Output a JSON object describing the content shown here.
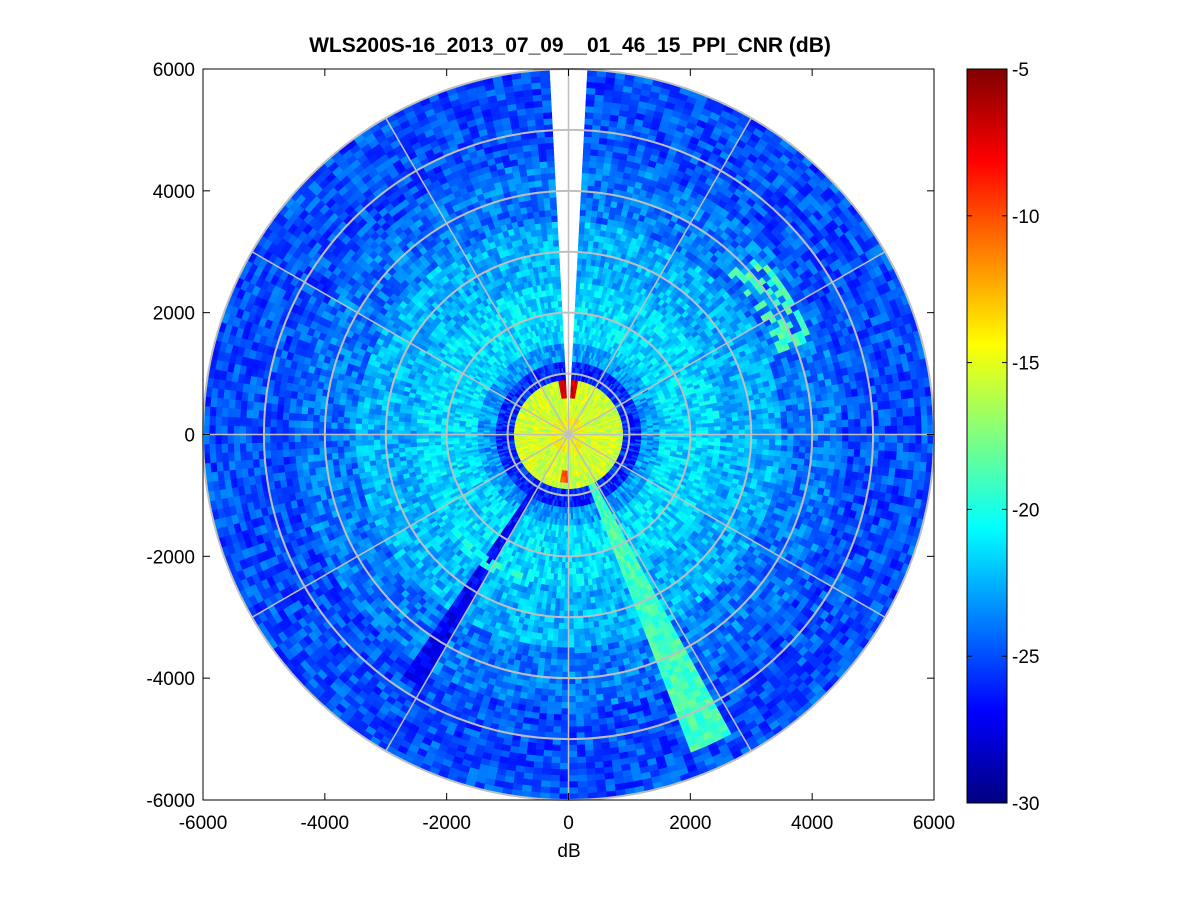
{
  "chart_data": {
    "type": "heatmap",
    "subtype": "polar-ppi",
    "title": "WLS200S-16_2013_07_09__01_46_15_PPI_CNR (dB)",
    "xlabel": "dB",
    "ylabel": "",
    "xlim": [
      -6000,
      6000
    ],
    "ylim": [
      -6000,
      6000
    ],
    "x_ticks": [
      "-6000",
      "-4000",
      "-2000",
      "0",
      "2000",
      "4000",
      "6000"
    ],
    "y_ticks": [
      "6000",
      "4000",
      "2000",
      "0",
      "-2000",
      "-4000",
      "-6000"
    ],
    "x_tick_values": [
      -6000,
      -4000,
      -2000,
      0,
      2000,
      4000,
      6000
    ],
    "y_tick_values": [
      6000,
      4000,
      2000,
      0,
      -2000,
      -4000,
      -6000
    ],
    "max_range": 6000,
    "range_rings": [
      1000,
      2000,
      3000,
      4000,
      5000,
      6000
    ],
    "spokes_deg": [
      0,
      30,
      60,
      90,
      120,
      150,
      180,
      210,
      240,
      270,
      300,
      330
    ],
    "colormap": "jet",
    "clim": [
      -30,
      -5
    ],
    "colorbar_ticks": [
      "-5",
      "-10",
      "-15",
      "-20",
      "-25",
      "-30"
    ],
    "colorbar_tick_values": [
      -5,
      -10,
      -15,
      -20,
      -25,
      -30
    ],
    "missing_sector_deg": [
      -2.5,
      2.5
    ],
    "field_profile": [
      {
        "r_max": 300,
        "cnr": -14.5
      },
      {
        "r_max": 900,
        "cnr": -15.5
      },
      {
        "r_max": 1200,
        "cnr": -26
      },
      {
        "r_max": 1500,
        "cnr": -23
      },
      {
        "r_max": 2500,
        "cnr": -21.5
      },
      {
        "r_max": 3500,
        "cnr": -22.5
      },
      {
        "r_max": 4500,
        "cnr": -24
      },
      {
        "r_max": 6000,
        "cnr": -25
      }
    ],
    "features": [
      {
        "name": "bright plume",
        "az_center_deg": 155,
        "az_width_deg": 8,
        "r_start": 900,
        "r_end": 5600,
        "cnr": -19
      },
      {
        "name": "low-CNR beam 1",
        "az_center_deg": 211,
        "az_width_deg": 3,
        "r_start": 1000,
        "r_end": 4800,
        "cnr": -27
      },
      {
        "name": "low-CNR beam 2",
        "az_center_deg": 213,
        "az_width_deg": 1.5,
        "r_start": 1000,
        "r_end": 4800,
        "cnr": -27
      },
      {
        "name": "bright arc NE",
        "az_center_deg": 57,
        "az_width_deg": 25,
        "r_start": 3700,
        "r_end": 4300,
        "cnr": -19
      },
      {
        "name": "bright arc SW",
        "az_center_deg": 210,
        "az_width_deg": 30,
        "r_start": 2400,
        "r_end": 2600,
        "cnr": -20
      },
      {
        "name": "hot spot",
        "az_center_deg": 0,
        "az_width_deg": 20,
        "r_start": 650,
        "r_end": 850,
        "cnr": -7
      },
      {
        "name": "hot spot",
        "az_center_deg": 185,
        "az_width_deg": 10,
        "r_start": 650,
        "r_end": 800,
        "cnr": -10
      }
    ]
  }
}
